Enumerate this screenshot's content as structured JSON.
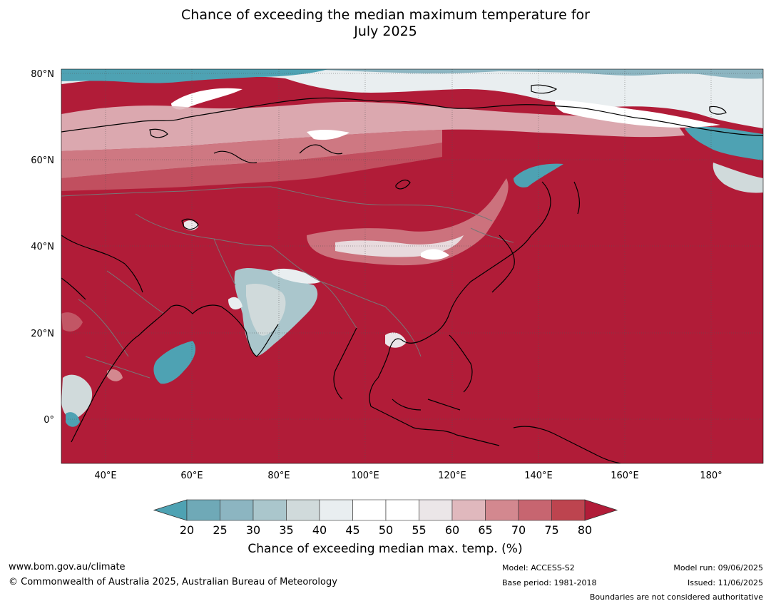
{
  "title": {
    "line1": "Chance of exceeding the median maximum temperature for",
    "line2": "July 2025"
  },
  "map": {
    "lat_ticks": [
      "80°N",
      "60°N",
      "40°N",
      "20°N",
      "0°"
    ],
    "lon_ticks": [
      "40°E",
      "60°E",
      "80°E",
      "100°E",
      "120°E",
      "140°E",
      "160°E",
      "180°"
    ],
    "colors": {
      "high": "#b11c38",
      "ocean_low": "#4a9fb2",
      "neutral": "#ffffff",
      "coast": "#000000",
      "border": "#777777"
    }
  },
  "colorbar": {
    "ticks": [
      "20",
      "25",
      "30",
      "35",
      "40",
      "45",
      "50",
      "55",
      "60",
      "65",
      "70",
      "75",
      "80"
    ],
    "colors": [
      "#4ea2b3",
      "#6fa9b7",
      "#8cb5c1",
      "#aac6cc",
      "#d0dadb",
      "#e9eef0",
      "#ffffff",
      "#ffffff",
      "#ebe6e8",
      "#e0b8bd",
      "#d3888f",
      "#c76570",
      "#bd444f",
      "#b11c38"
    ],
    "label": "Chance of exceeding median max. temp. (%)"
  },
  "footer": {
    "website": "www.bom.gov.au/climate",
    "copyright": "© Commonwealth of Australia 2025, Australian Bureau of Meteorology",
    "model": "Model: ACCESS-S2",
    "base_period": "Base period: 1981-2018",
    "model_run": "Model run: 09/06/2025",
    "issued": "Issued: 11/06/2025",
    "disclaimer": "Boundaries are not considered authoritative"
  }
}
